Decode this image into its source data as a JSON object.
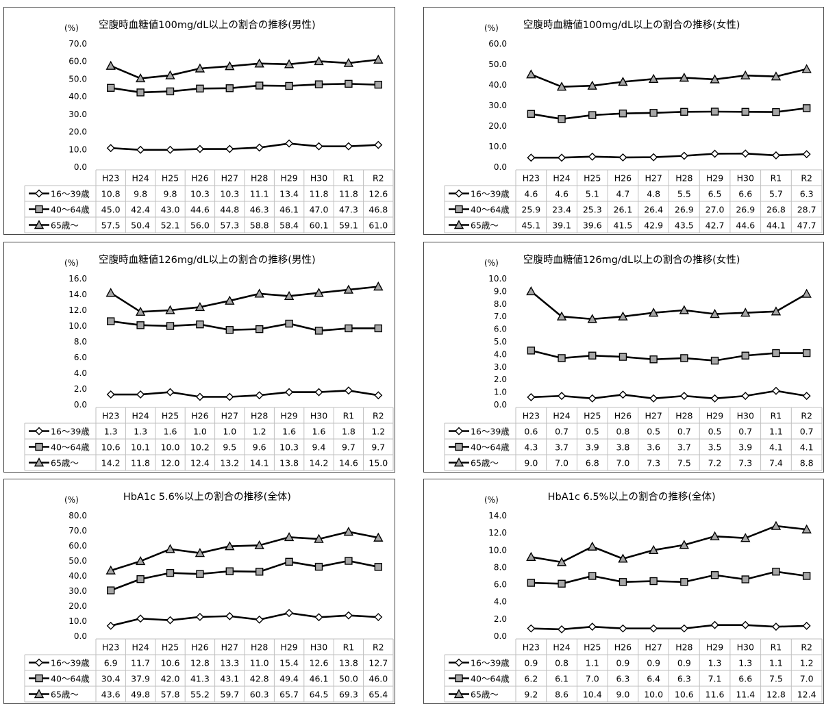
{
  "chart_data": [
    {
      "type": "line",
      "title": "空腹時血糖値100mg/dL以上の割合の推移(男性)",
      "unit": "(%)",
      "categories": [
        "H23",
        "H24",
        "H25",
        "H26",
        "H27",
        "H28",
        "H29",
        "H30",
        "R1",
        "R2"
      ],
      "ylim": [
        0,
        70
      ],
      "yticks": [
        "0.0",
        "10.0",
        "20.0",
        "30.0",
        "40.0",
        "50.0",
        "60.0",
        "70.0"
      ],
      "series": [
        {
          "name": "16～39歳",
          "marker": "diamond",
          "values": [
            10.8,
            9.8,
            9.8,
            10.3,
            10.3,
            11.1,
            13.4,
            11.8,
            11.8,
            12.6
          ]
        },
        {
          "name": "40～64歳",
          "marker": "square",
          "values": [
            45.0,
            42.4,
            43.0,
            44.6,
            44.8,
            46.3,
            46.1,
            47.0,
            47.3,
            46.8
          ]
        },
        {
          "name": "65歳～",
          "marker": "triangle",
          "values": [
            57.5,
            50.4,
            52.1,
            56.0,
            57.3,
            58.8,
            58.4,
            60.1,
            59.1,
            61.0
          ]
        }
      ]
    },
    {
      "type": "line",
      "title": "空腹時血糖値100mg/dL以上の割合の推移(女性)",
      "unit": "(%)",
      "categories": [
        "H23",
        "H24",
        "H25",
        "H26",
        "H27",
        "H28",
        "H29",
        "H30",
        "R1",
        "R2"
      ],
      "ylim": [
        0,
        60
      ],
      "yticks": [
        "0.0",
        "10.0",
        "20.0",
        "30.0",
        "40.0",
        "50.0",
        "60.0"
      ],
      "series": [
        {
          "name": "16～39歳",
          "marker": "diamond",
          "values": [
            4.6,
            4.6,
            5.1,
            4.7,
            4.8,
            5.5,
            6.5,
            6.6,
            5.7,
            6.3
          ]
        },
        {
          "name": "40～64歳",
          "marker": "square",
          "values": [
            25.9,
            23.4,
            25.3,
            26.1,
            26.4,
            26.9,
            27.0,
            26.9,
            26.8,
            28.7
          ]
        },
        {
          "name": "65歳～",
          "marker": "triangle",
          "values": [
            45.1,
            39.1,
            39.6,
            41.5,
            42.9,
            43.5,
            42.7,
            44.6,
            44.1,
            47.7
          ]
        }
      ]
    },
    {
      "type": "line",
      "title": "空腹時血糖値126mg/dL以上の割合の推移(男性)",
      "unit": "(%)",
      "categories": [
        "H23",
        "H24",
        "H25",
        "H26",
        "H27",
        "H28",
        "H29",
        "H30",
        "R1",
        "R2"
      ],
      "ylim": [
        0,
        16
      ],
      "yticks": [
        "0.0",
        "2.0",
        "4.0",
        "6.0",
        "8.0",
        "10.0",
        "12.0",
        "14.0",
        "16.0"
      ],
      "series": [
        {
          "name": "16～39歳",
          "marker": "diamond",
          "values": [
            1.3,
            1.3,
            1.6,
            1.0,
            1.0,
            1.2,
            1.6,
            1.6,
            1.8,
            1.2
          ]
        },
        {
          "name": "40～64歳",
          "marker": "square",
          "values": [
            10.6,
            10.1,
            10.0,
            10.2,
            9.5,
            9.6,
            10.3,
            9.4,
            9.7,
            9.7
          ]
        },
        {
          "name": "65歳～",
          "marker": "triangle",
          "values": [
            14.2,
            11.8,
            12.0,
            12.4,
            13.2,
            14.1,
            13.8,
            14.2,
            14.6,
            15.0
          ]
        }
      ]
    },
    {
      "type": "line",
      "title": "空腹時血糖値126mg/dL以上の割合の推移(女性)",
      "unit": "(%)",
      "categories": [
        "H23",
        "H24",
        "H25",
        "H26",
        "H27",
        "H28",
        "H29",
        "H30",
        "R1",
        "R2"
      ],
      "ylim": [
        0,
        10
      ],
      "yticks": [
        "0.0",
        "1.0",
        "2.0",
        "3.0",
        "4.0",
        "5.0",
        "6.0",
        "7.0",
        "8.0",
        "9.0",
        "10.0"
      ],
      "series": [
        {
          "name": "16～39歳",
          "marker": "diamond",
          "values": [
            0.6,
            0.7,
            0.5,
            0.8,
            0.5,
            0.7,
            0.5,
            0.7,
            1.1,
            0.7
          ]
        },
        {
          "name": "40～64歳",
          "marker": "square",
          "values": [
            4.3,
            3.7,
            3.9,
            3.8,
            3.6,
            3.7,
            3.5,
            3.9,
            4.1,
            4.1
          ]
        },
        {
          "name": "65歳～",
          "marker": "triangle",
          "values": [
            9.0,
            7.0,
            6.8,
            7.0,
            7.3,
            7.5,
            7.2,
            7.3,
            7.4,
            8.8
          ]
        }
      ]
    },
    {
      "type": "line",
      "title": "HbA1c 5.6%以上の割合の推移(全体)",
      "unit": "(%)",
      "categories": [
        "H23",
        "H24",
        "H25",
        "H26",
        "H27",
        "H28",
        "H29",
        "H30",
        "R1",
        "R2"
      ],
      "ylim": [
        0,
        80
      ],
      "yticks": [
        "0.0",
        "10.0",
        "20.0",
        "30.0",
        "40.0",
        "50.0",
        "60.0",
        "70.0",
        "80.0"
      ],
      "series": [
        {
          "name": "16～39歳",
          "marker": "diamond",
          "values": [
            6.9,
            11.7,
            10.6,
            12.8,
            13.3,
            11.0,
            15.4,
            12.6,
            13.8,
            12.7
          ]
        },
        {
          "name": "40～64歳",
          "marker": "square",
          "values": [
            30.4,
            37.9,
            42.0,
            41.3,
            43.1,
            42.8,
            49.4,
            46.1,
            50.0,
            46.0
          ]
        },
        {
          "name": "65歳～",
          "marker": "triangle",
          "values": [
            43.6,
            49.8,
            57.8,
            55.2,
            59.7,
            60.3,
            65.7,
            64.5,
            69.3,
            65.4
          ]
        }
      ]
    },
    {
      "type": "line",
      "title": "HbA1c 6.5%以上の割合の推移(全体)",
      "unit": "(%)",
      "categories": [
        "H23",
        "H24",
        "H25",
        "H26",
        "H27",
        "H28",
        "H29",
        "H30",
        "R1",
        "R2"
      ],
      "ylim": [
        0,
        14
      ],
      "yticks": [
        "0.0",
        "2.0",
        "4.0",
        "6.0",
        "8.0",
        "10.0",
        "12.0",
        "14.0"
      ],
      "series": [
        {
          "name": "16～39歳",
          "marker": "diamond",
          "values": [
            0.9,
            0.8,
            1.1,
            0.9,
            0.9,
            0.9,
            1.3,
            1.3,
            1.1,
            1.2
          ]
        },
        {
          "name": "40～64歳",
          "marker": "square",
          "values": [
            6.2,
            6.1,
            7.0,
            6.3,
            6.4,
            6.3,
            7.1,
            6.6,
            7.5,
            7.0
          ]
        },
        {
          "name": "65歳～",
          "marker": "triangle",
          "values": [
            9.2,
            8.6,
            10.4,
            9.0,
            10.0,
            10.6,
            11.6,
            11.4,
            12.8,
            12.4
          ]
        }
      ]
    }
  ]
}
